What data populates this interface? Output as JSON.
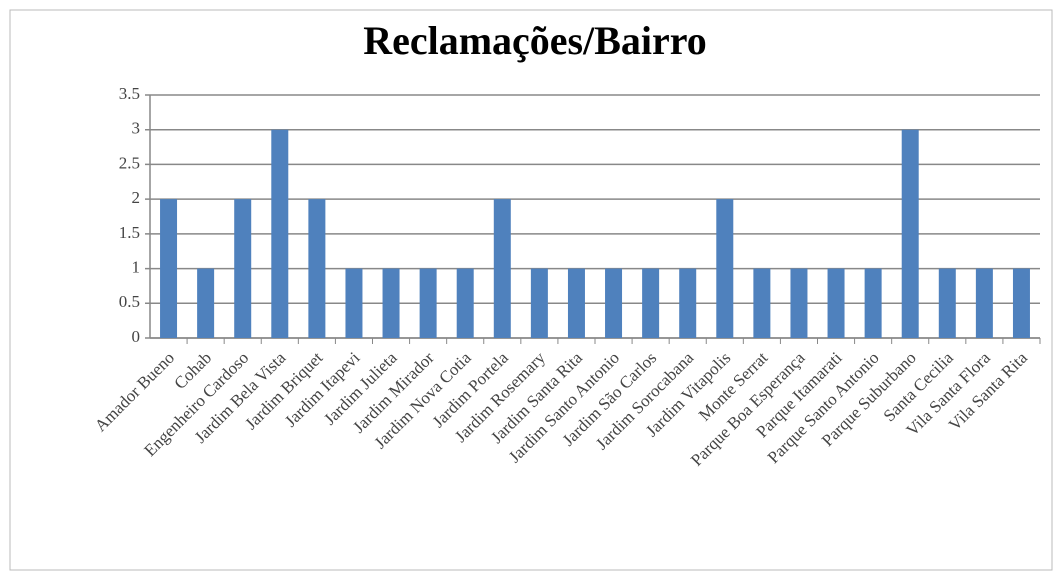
{
  "chart_data": {
    "type": "bar",
    "title": "Reclamações/Bairro",
    "categories": [
      "Amador Bueno",
      "Cohab",
      "Engenheiro Cardoso",
      "Jardim Bela Vista",
      "Jardim Briquet",
      "Jardim Itapevi",
      "Jardim Julieta",
      "Jardim Mirador",
      "Jardim Nova Cotia",
      "Jardim Portela",
      "Jardim Rosemary",
      "Jardim Santa Rita",
      "Jardim Santo Antonio",
      "Jardim São Carlos",
      "Jardim Sorocabana",
      "Jardim Vitapolis",
      "Monte Serrat",
      "Parque Boa Esperança",
      "Parque Itamarati",
      "Parque Santo Antonio",
      "Parque Suburbano",
      "Santa Cecilia",
      "Vila Santa Flora",
      "Vila Santa Rita"
    ],
    "values": [
      2,
      1,
      2,
      3,
      2,
      1,
      1,
      1,
      1,
      2,
      1,
      1,
      1,
      1,
      1,
      2,
      1,
      1,
      1,
      1,
      3,
      1,
      1,
      1
    ],
    "color": "#4f81bd",
    "ylim": [
      0,
      3.5
    ],
    "yticks": [
      0,
      0.5,
      1,
      1.5,
      2,
      2.5,
      3,
      3.5
    ],
    "grid": true
  }
}
